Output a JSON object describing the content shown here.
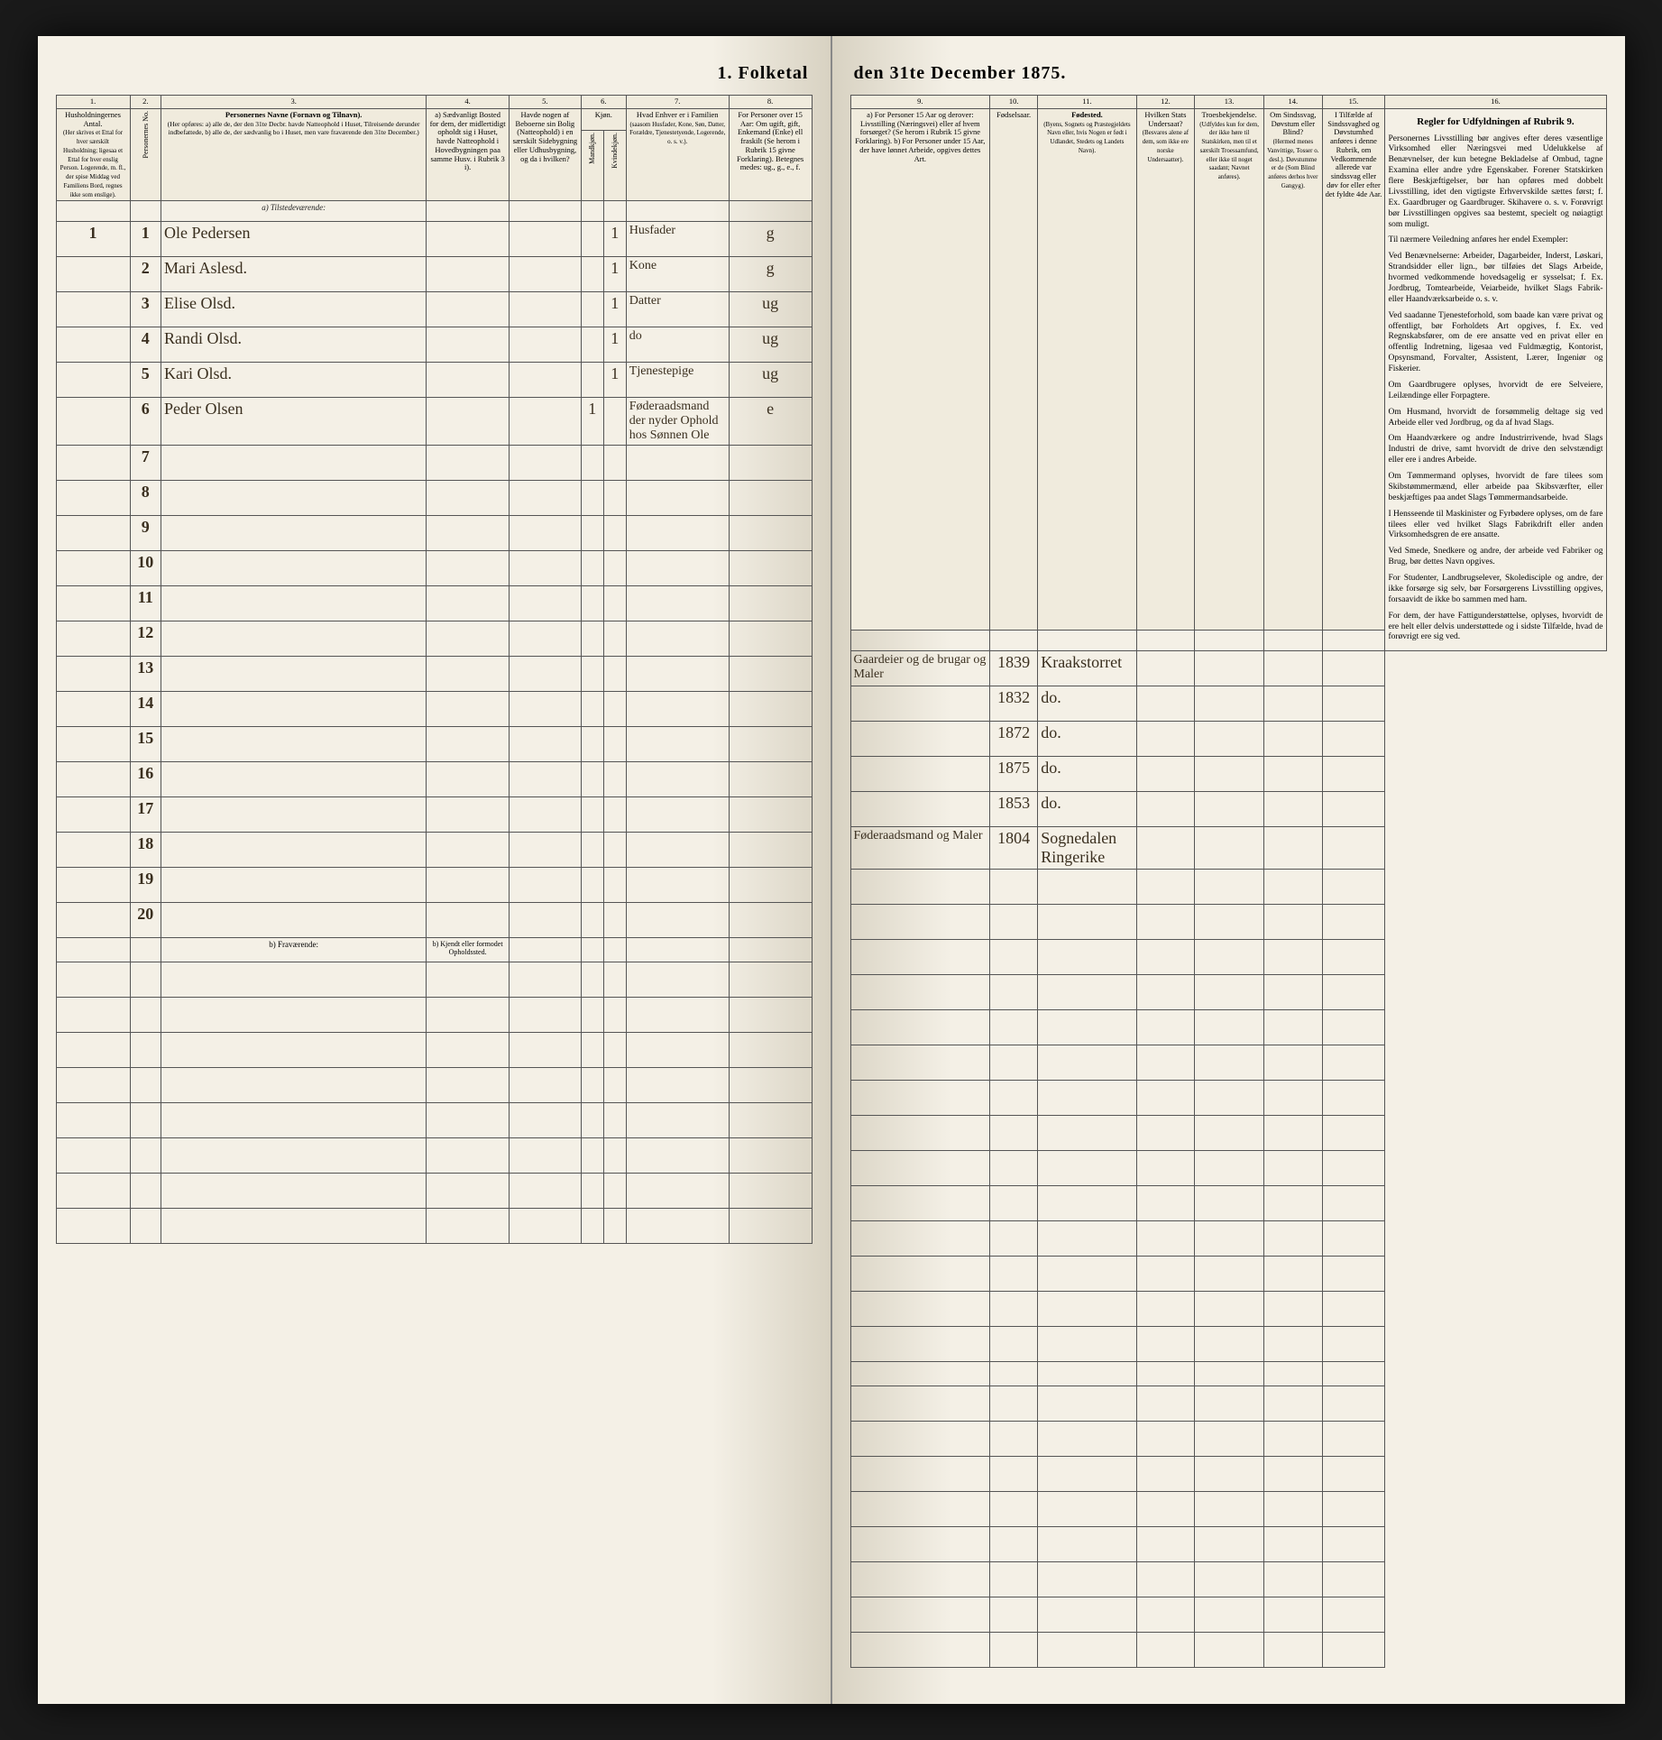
{
  "title_left": "1. Folketal",
  "title_right": "den 31te December 1875.",
  "columns_left": {
    "c1": "1.",
    "c2": "2.",
    "c3": "3.",
    "c4": "4.",
    "c5": "5.",
    "c6": "6.",
    "c7": "7.",
    "c8": "8.",
    "h1": "Husholdningernes Antal.",
    "h1_sub": "(Her skrives et Ettal for hver særskilt Husholdning; ligesaa et Ettal for hver enslig Person. Logerende, m. fl., der spise Middag ved Familiens Bord, regnes ikke som enslige).",
    "h2": "Personernes No.",
    "h3": "Personernes Navne (Fornavn og Tilnavn).",
    "h3_sub": "(Her opføres: a) alle de, der den 31te Decbr. havde Natteophold i Huset, Tilreisende derunder indbefattede, b) alle de, der sædvanlig bo i Huset, men vare fraværende den 31te December.)",
    "h4": "a) Sædvanligt Bosted for dem, der midlertidigt opholdt sig i Huset, havde Natteophold i Hovedbygningen paa samme Husv. i Rubrik 3 i).",
    "h5": "Havde nogen af Beboerne sin Bolig (Natteophold) i en særskilt Sidebygning eller Udhusbygning, og da i hvilken?",
    "h6": "Kjøn.",
    "h6a": "Mandkjøn.",
    "h6b": "Kvindekjøn.",
    "h7": "Hvad Enhver er i Familien",
    "h7_sub": "(saasom Husfader, Kone, Søn, Datter, Forældre, Tjenestetyende, Logerende, o. s. v.).",
    "h8": "For Personer over 15 Aar: Om ugift, gift, Enkemand (Enke) ell fraskilt (Se herom i Rubrik 15 givne Forklaring). Betegnes medes: ug., g., e., f."
  },
  "columns_right": {
    "c9": "9.",
    "c10": "10.",
    "c11": "11.",
    "c12": "12.",
    "c13": "13.",
    "c14": "14.",
    "c15": "15.",
    "c16": "16.",
    "h9": "a) For Personer 15 Aar og derover: Livsstilling (Næringsvei) eller af hvem forsørget? (Se herom i Rubrik 15 givne Forklaring). b) For Personer under 15 Aar, der have lønnet Arbeide, opgives dettes Art.",
    "h10": "Fødselsaar.",
    "h11": "Fødested.",
    "h11_sub": "(Byens, Sognets og Præstegjeldets Navn eller, hvis Nogen er født i Udlandet, Stedets og Landets Navn).",
    "h12": "Hvilken Stats Undersaat?",
    "h12_sub": "(Besvares alene af dem, som ikke ere norske Undersaatter).",
    "h13": "Troesbekjendelse.",
    "h13_sub": "(Udfyldes kun for dem, der ikke høre til Statskirken, men til et særskilt Troessamfund, eller ikke til noget saadant; Navnet anføres).",
    "h14": "Om Sindssvag, Døvstum eller Blind?",
    "h14_sub": "(Hermed menes Vanvittige, Tosser o. desl.). Døvstumme er de (Som Blind anføres derhos hver Gangyg).",
    "h15": "I Tilfælde af Sindssvaghed og Døvstumhed anføres i denne Rubrik, om Vedkommende allerede var sindssvag eller døv for eller efter det fyldte 4de Aar.",
    "h16_title": "Regler for Udfyldningen af Rubrik 9."
  },
  "subhead": {
    "a_left": "a) Tilstedeværende:",
    "b_left": "b) Fraværende:",
    "b_right": "b) Kjendt eller formodet Opholdssted."
  },
  "rows": [
    {
      "n": "1",
      "hh": "1",
      "name": "Ole Pedersen",
      "c6b": "1",
      "rel": "Husfader",
      "ms": "g",
      "occ": "Gaardeier og de brugar og Maler",
      "year": "1839",
      "place": "Kraakstorret"
    },
    {
      "n": "2",
      "hh": "",
      "name": "Mari Aslesd.",
      "c6b": "1",
      "rel": "Kone",
      "ms": "g",
      "occ": "",
      "year": "1832",
      "place": "do."
    },
    {
      "n": "3",
      "hh": "",
      "name": "Elise Olsd.",
      "c6b": "1",
      "rel": "Datter",
      "ms": "ug",
      "occ": "",
      "year": "1872",
      "place": "do."
    },
    {
      "n": "4",
      "hh": "",
      "name": "Randi Olsd.",
      "c6b": "1",
      "rel": "do",
      "ms": "ug",
      "occ": "",
      "year": "1875",
      "place": "do."
    },
    {
      "n": "5",
      "hh": "",
      "name": "Kari Olsd.",
      "c6b": "1",
      "rel": "Tjenestepige",
      "ms": "ug",
      "occ": "",
      "year": "1853",
      "place": "do."
    },
    {
      "n": "6",
      "hh": "",
      "name": "Peder Olsen",
      "c6a": "1",
      "rel": "Føderaadsmand der nyder Ophold hos Sønnen Ole",
      "ms": "e",
      "occ": "Føderaadsmand og Maler",
      "year": "1804",
      "place": "Sognedalen Ringerike"
    }
  ],
  "empty_rows": [
    "7",
    "8",
    "9",
    "10",
    "11",
    "12",
    "13",
    "14",
    "15",
    "16",
    "17",
    "18",
    "19",
    "20"
  ],
  "rules": {
    "p1": "Personernes Livsstilling bør angives efter deres væsentlige Virksomhed eller Næringsvei med Udelukkelse af Benævnelser, der kun betegne Bekladelse af Ombud, tagne Examina eller andre ydre Egenskaber. Forener Statskirken flere Beskjæftigelser, bør han opføres med dobbelt Livsstilling, idet den vigtigste Erhvervskilde sættes først; f. Ex. Gaardbruger og Gaardbruger. Skihavere o. s. v. Forøvrigt bør Livsstillingen opgives saa bestemt, specielt og nøiagtigt som muligt.",
    "p2": "Til nærmere Veiledning anføres her endel Exempler:",
    "p3": "Ved Benævnelserne: Arbeider, Dagarbeider, Inderst, Løskari, Strandsidder eller lign., bør tilføies det Slags Arbeide, hvormed vedkommende hovedsagelig er sysselsat; f. Ex. Jordbrug, Tomtearbeide, Veiarbeide, hvilket Slags Fabrik- eller Haandværksarbeide o. s. v.",
    "p4": "Ved saadanne Tjenesteforhold, som baade kan være privat og offentligt, bør Forholdets Art opgives, f. Ex. ved Regnskabsfører, om de ere ansatte ved en privat eller en offentlig Indretning, ligesaa ved Fuldmægtig, Kontorist, Opsynsmand, Forvalter, Assistent, Lærer, Ingeniør og Fiskerier.",
    "p5": "Om Gaardbrugere oplyses, hvorvidt de ere Selveiere, Leilændinge eller Forpagtere.",
    "p6": "Om Husmand, hvorvidt de forsømmelig deltage sig ved Arbeide eller ved Jordbrug, og da af hvad Slags.",
    "p7": "Om Haandværkere og andre Industrirrivende, hvad Slags Industri de drive, samt hvorvidt de drive den selvstændigt eller ere i andres Arbeide.",
    "p8": "Om Tømmermand oplyses, hvorvidt de fare tilees som Skibstømmermænd, eller arbeide paa Skibsværfter, eller beskjæftiges paa andet Slags Tømmermandsarbeide.",
    "p9": "I Hensseende til Maskinister og Fyrbødere oplyses, om de fare tilees eller ved hvilket Slags Fabrikdrift eller anden Virksomhedsgren de ere ansatte.",
    "p10": "Ved Smede, Snedkere og andre, der arbeide ved Fabriker og Brug, bør dettes Navn opgives.",
    "p11": "For Studenter, Landbrugselever, Skoledisciple og andre, der ikke forsørge sig selv, bør Forsørgerens Livsstilling opgives, forsaavidt de ikke bo sammen med ham.",
    "p12": "For dem, der have Fattigunderstøttelse, oplyses, hvorvidt de ere helt eller delvis understøttede og i sidste Tilfælde, hvad de forøvrigt ere sig ved."
  },
  "colors": {
    "paper": "#f4f0e6",
    "ink": "#2a2418",
    "rule": "#555555",
    "handwriting": "#3a2f1f"
  }
}
